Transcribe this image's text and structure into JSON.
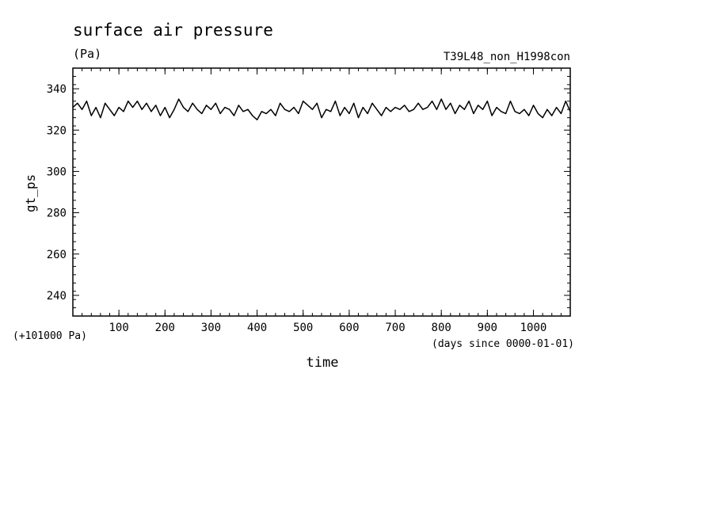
{
  "chart_data": {
    "type": "line",
    "title": "surface air pressure",
    "units": "(Pa)",
    "run_label": "T39L48_non_H1998con",
    "ylabel": "gt_ps",
    "xlabel": "time",
    "x_unit_note": "(days since 0000-01-01)",
    "y_offset_note": "(+101000 Pa)",
    "xlim": [
      0,
      1080
    ],
    "ylim": [
      230,
      350
    ],
    "x_ticks": [
      100,
      200,
      300,
      400,
      500,
      600,
      700,
      800,
      900,
      1000
    ],
    "x_tick_labels": [
      "100",
      "200",
      "300",
      "400",
      "500",
      "600",
      "700",
      "800",
      "900",
      "1000"
    ],
    "y_ticks": [
      240,
      260,
      280,
      300,
      320,
      340
    ],
    "y_tick_labels": [
      "240",
      "260",
      "280",
      "300",
      "320",
      "340"
    ],
    "grid": false,
    "series": [
      {
        "x": [
          0,
          10,
          20,
          30,
          40,
          50,
          60,
          70,
          80,
          90,
          100,
          110,
          120,
          130,
          140,
          150,
          160,
          170,
          180,
          190,
          200,
          210,
          220,
          230,
          240,
          250,
          260,
          270,
          280,
          290,
          300,
          310,
          320,
          330,
          340,
          350,
          360,
          370,
          380,
          390,
          400,
          410,
          420,
          430,
          440,
          450,
          460,
          470,
          480,
          490,
          500,
          510,
          520,
          530,
          540,
          550,
          560,
          570,
          580,
          590,
          600,
          610,
          620,
          630,
          640,
          650,
          660,
          670,
          680,
          690,
          700,
          710,
          720,
          730,
          740,
          750,
          760,
          770,
          780,
          790,
          800,
          810,
          820,
          830,
          840,
          850,
          860,
          870,
          880,
          890,
          900,
          910,
          920,
          930,
          940,
          950,
          960,
          970,
          980,
          990,
          1000,
          1010,
          1020,
          1030,
          1040,
          1050,
          1060,
          1070,
          1080
        ],
        "y": [
          331,
          333,
          330,
          334,
          327,
          331,
          326,
          333,
          330,
          327,
          331,
          329,
          334,
          331,
          334,
          330,
          333,
          329,
          332,
          327,
          331,
          326,
          330,
          335,
          331,
          329,
          333,
          330,
          328,
          332,
          330,
          333,
          328,
          331,
          330,
          327,
          332,
          329,
          330,
          327,
          325,
          329,
          328,
          330,
          327,
          333,
          330,
          329,
          331,
          328,
          334,
          332,
          330,
          333,
          326,
          330,
          329,
          334,
          327,
          331,
          328,
          333,
          326,
          331,
          328,
          333,
          330,
          327,
          331,
          329,
          331,
          330,
          332,
          329,
          330,
          333,
          330,
          331,
          334,
          330,
          335,
          330,
          333,
          328,
          332,
          330,
          334,
          328,
          332,
          330,
          334,
          327,
          331,
          329,
          328,
          334,
          329,
          328,
          330,
          327,
          332,
          328,
          326,
          330,
          327,
          331,
          328,
          334,
          329
        ]
      }
    ]
  }
}
